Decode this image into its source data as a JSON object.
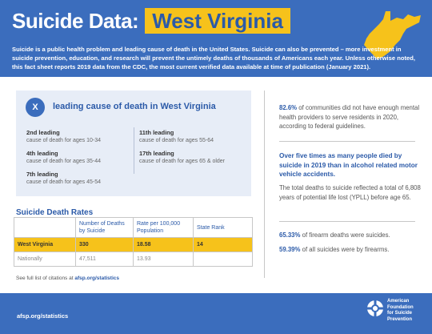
{
  "header": {
    "title": "Suicide Data:",
    "state": "West Virginia",
    "intro": "Suicide is a public health problem and leading cause of death in the United States. Suicide can also be prevented – more investment in suicide prevention, education, and research will prevent the untimely deaths of thousands of Americans each year. Unless otherwise noted, this fact sheet reports 2019 data from the CDC, the most current verified data available at time of publication (January 2021)."
  },
  "leading": {
    "badge": "X",
    "title": "leading cause of death in West Virginia",
    "items": [
      {
        "rank": "2nd leading",
        "desc": "cause of death for ages 10-34"
      },
      {
        "rank": "4th leading",
        "desc": "cause of death for ages 35-44"
      },
      {
        "rank": "7th leading",
        "desc": "cause of death for ages 45-54"
      },
      {
        "rank": "11th leading",
        "desc": "cause of death for ages 55-64"
      },
      {
        "rank": "17th leading",
        "desc": "cause of death for ages 65 & older"
      }
    ]
  },
  "rates": {
    "title": "Suicide Death Rates",
    "headers": [
      "",
      "Number of Deaths by Suicide",
      "Rate per 100,000 Population",
      "State Rank"
    ],
    "rows": [
      [
        "West Virginia",
        "330",
        "18.58",
        "14"
      ],
      [
        "Nationally",
        "47,511",
        "13.93",
        ""
      ]
    ]
  },
  "citation": {
    "text": "See full list of citations at",
    "link": "afsp.org/statistics"
  },
  "right": {
    "stat1_value": "82.6%",
    "stat1_text": "of communities did not have enough mental health providers to serve residents in 2020, according to federal guidelines.",
    "callout": "Over five times as many people died by suicide in 2019 than in alcohol related motor vehicle accidents.",
    "ypll": "The total deaths to suicide reflected a total of 6,808 years of potential life lost (YPLL) before age 65.",
    "stat2_value": "65.33%",
    "stat2_text": "of firearm deaths were suicides.",
    "stat3_value": "59.39%",
    "stat3_text": "of all suicides were by firearms."
  },
  "footer": {
    "url": "afsp.org/statistics",
    "org_line1": "American",
    "org_line2": "Foundation",
    "org_line3": "for Suicide",
    "org_line4": "Prevention"
  },
  "colors": {
    "brand_blue": "#3b6dbd",
    "accent_yellow": "#f6c21b",
    "panel_bg": "#e7edf7"
  }
}
